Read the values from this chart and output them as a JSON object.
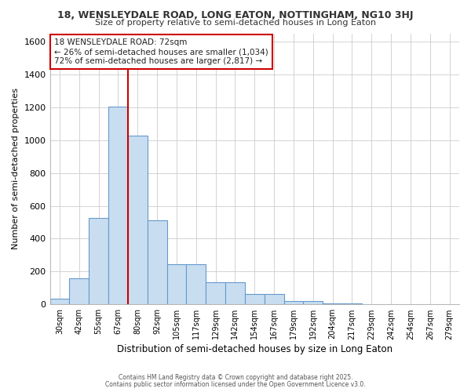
{
  "title1": "18, WENSLEYDALE ROAD, LONG EATON, NOTTINGHAM, NG10 3HJ",
  "title2": "Size of property relative to semi-detached houses in Long Eaton",
  "xlabel": "Distribution of semi-detached houses by size in Long Eaton",
  "ylabel": "Number of semi-detached properties",
  "bin_labels": [
    "30sqm",
    "42sqm",
    "55sqm",
    "67sqm",
    "80sqm",
    "92sqm",
    "105sqm",
    "117sqm",
    "129sqm",
    "142sqm",
    "154sqm",
    "167sqm",
    "179sqm",
    "192sqm",
    "204sqm",
    "217sqm",
    "229sqm",
    "242sqm",
    "254sqm",
    "267sqm",
    "279sqm"
  ],
  "bar_values": [
    35,
    160,
    525,
    1205,
    1025,
    510,
    247,
    247,
    135,
    135,
    65,
    65,
    20,
    20,
    8,
    8,
    3,
    3,
    1,
    1,
    0
  ],
  "annotation_title": "18 WENSLEYDALE ROAD: 72sqm",
  "annotation_line1": "← 26% of semi-detached houses are smaller (1,034)",
  "annotation_line2": "72% of semi-detached houses are larger (2,817) →",
  "bar_color": "#c8ddf0",
  "bar_edge_color": "#6699cc",
  "vline_color": "#cc0000",
  "vline_x": 3.5,
  "ylim": [
    0,
    1650
  ],
  "yticks": [
    0,
    200,
    400,
    600,
    800,
    1000,
    1200,
    1400,
    1600
  ],
  "bg_color": "#ffffff",
  "grid_color": "#cccccc",
  "footer1": "Contains HM Land Registry data © Crown copyright and database right 2025.",
  "footer2": "Contains public sector information licensed under the Open Government Licence v3.0."
}
